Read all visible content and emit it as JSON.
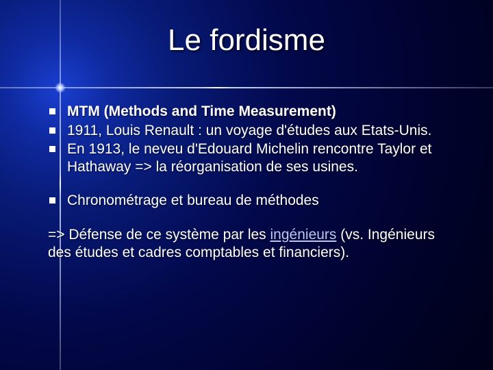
{
  "slide": {
    "title": "Le fordisme",
    "bullets_group1": [
      {
        "html": "MTM (Methods and Time Measurement)",
        "bold": true
      },
      {
        "html": "1911, Louis Renault : un voyage d'études aux Etats-Unis."
      },
      {
        "html": " En 1913, le neveu d'Edouard Michelin rencontre Taylor et Hathaway => la réorganisation de ses usines."
      }
    ],
    "bullet_group2": "Chronométrage et bureau de méthodes",
    "arrow_prefix": "=> Défense de ce système par les ",
    "arrow_link": "ingénieurs",
    "arrow_suffix": " (vs. Ingénieurs des études et cadres comptables et financiers).",
    "colors": {
      "background_dark": "#010330",
      "background_light": "#1a3fd0",
      "text": "#ffffff",
      "link": "#b8c8ff",
      "bullet": "#ffffff"
    },
    "fontsize": {
      "title": 44,
      "body": 21
    }
  }
}
